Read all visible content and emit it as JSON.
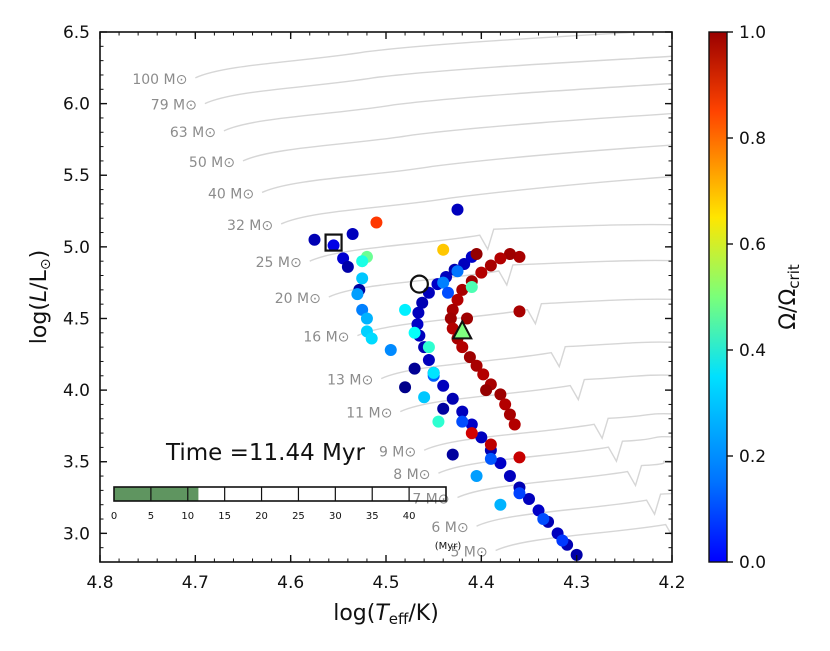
{
  "chart_data": {
    "type": "scatter",
    "title": "",
    "xlabel": "log(T_eff/K)",
    "ylabel": "log(L/L⊙)",
    "xlim": [
      4.8,
      4.2
    ],
    "ylim": [
      2.8,
      6.5
    ],
    "xticks": [
      "4.8",
      "4.7",
      "4.6",
      "4.5",
      "4.4",
      "4.3",
      "4.2"
    ],
    "yticks": [
      "3.0",
      "3.5",
      "4.0",
      "4.5",
      "5.0",
      "5.5",
      "6.0",
      "6.5"
    ],
    "colorbar": {
      "label": "Ω/Ω_crit",
      "range": [
        0.0,
        1.0
      ],
      "ticks": [
        "0.0",
        "0.2",
        "0.4",
        "0.6",
        "0.8",
        "1.0"
      ],
      "colormap": "jet"
    },
    "time_label": "Time =11.44 Myr",
    "current_time_myr": 11.44,
    "timeline": {
      "range": [
        0,
        45
      ],
      "ticks": [
        "0",
        "5",
        "10",
        "15",
        "20",
        "25",
        "30",
        "35",
        "40"
      ],
      "unit": "(Myr)"
    },
    "mass_tracks": [
      {
        "label": "100 M⊙",
        "mass": 100,
        "zams": [
          4.7,
          6.18
        ]
      },
      {
        "label": "79 M⊙",
        "mass": 79,
        "zams": [
          4.69,
          6.0
        ]
      },
      {
        "label": "63 M⊙",
        "mass": 63,
        "zams": [
          4.67,
          5.81
        ]
      },
      {
        "label": "50 M⊙",
        "mass": 50,
        "zams": [
          4.65,
          5.6
        ]
      },
      {
        "label": "40 M⊙",
        "mass": 40,
        "zams": [
          4.63,
          5.38
        ]
      },
      {
        "label": "32 M⊙",
        "mass": 32,
        "zams": [
          4.61,
          5.16
        ]
      },
      {
        "label": "25 M⊙",
        "mass": 25,
        "zams": [
          4.58,
          4.9
        ]
      },
      {
        "label": "20 M⊙",
        "mass": 20,
        "zams": [
          4.56,
          4.65
        ]
      },
      {
        "label": "16 M⊙",
        "mass": 16,
        "zams": [
          4.53,
          4.38
        ]
      },
      {
        "label": "13 M⊙",
        "mass": 13,
        "zams": [
          4.505,
          4.08
        ]
      },
      {
        "label": "11 M⊙",
        "mass": 11,
        "zams": [
          4.485,
          3.85
        ]
      },
      {
        "label": "9 M⊙",
        "mass": 9,
        "zams": [
          4.46,
          3.58
        ]
      },
      {
        "label": "8 M⊙",
        "mass": 8,
        "zams": [
          4.445,
          3.42
        ]
      },
      {
        "label": "7 M⊙",
        "mass": 7,
        "zams": [
          4.425,
          3.25
        ]
      },
      {
        "label": "6 M⊙",
        "mass": 6,
        "zams": [
          4.405,
          3.05
        ]
      },
      {
        "label": "5 M⊙",
        "mass": 5,
        "zams": [
          4.385,
          2.88
        ]
      }
    ],
    "series": [
      {
        "name": "blue main sequence",
        "points": [
          [
            4.3,
            2.85,
            0.04
          ],
          [
            4.31,
            2.92,
            0.05
          ],
          [
            4.32,
            3.0,
            0.06
          ],
          [
            4.33,
            3.08,
            0.05
          ],
          [
            4.34,
            3.16,
            0.07
          ],
          [
            4.35,
            3.24,
            0.06
          ],
          [
            4.36,
            3.32,
            0.05
          ],
          [
            4.37,
            3.4,
            0.06
          ],
          [
            4.38,
            3.49,
            0.07
          ],
          [
            4.39,
            3.58,
            0.05
          ],
          [
            4.4,
            3.67,
            0.06
          ],
          [
            4.41,
            3.76,
            0.07
          ],
          [
            4.42,
            3.85,
            0.06
          ],
          [
            4.43,
            3.94,
            0.05
          ],
          [
            4.44,
            4.03,
            0.06
          ],
          [
            4.45,
            4.12,
            0.07
          ],
          [
            4.455,
            4.21,
            0.06
          ],
          [
            4.46,
            4.3,
            0.05
          ],
          [
            4.465,
            4.38,
            0.06
          ],
          [
            4.467,
            4.46,
            0.07
          ],
          [
            4.466,
            4.54,
            0.06
          ],
          [
            4.462,
            4.61,
            0.05
          ],
          [
            4.455,
            4.68,
            0.06
          ],
          [
            4.446,
            4.74,
            0.07
          ],
          [
            4.437,
            4.79,
            0.06
          ],
          [
            4.428,
            4.84,
            0.05
          ],
          [
            4.418,
            4.88,
            0.06
          ],
          [
            4.41,
            4.93,
            0.07
          ],
          [
            4.315,
            2.95,
            0.18
          ],
          [
            4.335,
            3.1,
            0.2
          ],
          [
            4.36,
            3.28,
            0.19
          ],
          [
            4.39,
            3.52,
            0.21
          ],
          [
            4.42,
            3.78,
            0.2
          ],
          [
            4.45,
            4.1,
            0.22
          ],
          [
            4.44,
            4.75,
            0.25
          ],
          [
            4.425,
            4.83,
            0.24
          ],
          [
            4.47,
            4.15,
            0.02
          ],
          [
            4.44,
            3.87,
            0.03
          ],
          [
            4.48,
            4.02,
            0.01
          ],
          [
            4.43,
            3.55,
            0.03
          ],
          [
            4.405,
            3.4,
            0.28
          ],
          [
            4.38,
            3.2,
            0.3
          ]
        ]
      },
      {
        "name": "red track",
        "points": [
          [
            4.36,
            4.93,
            0.96
          ],
          [
            4.37,
            4.95,
            0.97
          ],
          [
            4.38,
            4.92,
            0.95
          ],
          [
            4.39,
            4.87,
            0.96
          ],
          [
            4.4,
            4.82,
            0.95
          ],
          [
            4.41,
            4.76,
            0.97
          ],
          [
            4.42,
            4.7,
            0.96
          ],
          [
            4.425,
            4.63,
            0.95
          ],
          [
            4.43,
            4.56,
            0.96
          ],
          [
            4.432,
            4.5,
            0.97
          ],
          [
            4.43,
            4.43,
            0.95
          ],
          [
            4.425,
            4.36,
            0.96
          ],
          [
            4.42,
            4.3,
            0.95
          ],
          [
            4.412,
            4.23,
            0.97
          ],
          [
            4.405,
            4.17,
            0.96
          ],
          [
            4.398,
            4.11,
            0.95
          ],
          [
            4.39,
            4.04,
            0.96
          ],
          [
            4.38,
            3.97,
            0.97
          ],
          [
            4.375,
            3.9,
            0.95
          ],
          [
            4.37,
            3.83,
            0.96
          ],
          [
            4.365,
            3.76,
            0.95
          ],
          [
            4.36,
            3.53,
            0.93
          ],
          [
            4.39,
            3.62,
            0.94
          ],
          [
            4.41,
            3.7,
            0.92
          ],
          [
            4.395,
            4.0,
            0.98
          ],
          [
            4.415,
            4.5,
            0.97
          ],
          [
            4.405,
            4.95,
            0.98
          ],
          [
            4.36,
            4.55,
            0.96
          ]
        ]
      },
      {
        "name": "scattered",
        "points": [
          [
            4.575,
            5.05,
            0.05
          ],
          [
            4.555,
            5.01,
            0.1
          ],
          [
            4.545,
            4.92,
            0.08
          ],
          [
            4.54,
            4.86,
            0.04
          ],
          [
            4.535,
            5.09,
            0.06
          ],
          [
            4.528,
            4.7,
            0.03
          ],
          [
            4.51,
            5.17,
            0.82
          ],
          [
            4.44,
            4.98,
            0.68
          ],
          [
            4.425,
            5.26,
            0.06
          ],
          [
            4.52,
            4.93,
            0.48
          ],
          [
            4.525,
            4.78,
            0.32
          ],
          [
            4.53,
            4.67,
            0.28
          ],
          [
            4.525,
            4.56,
            0.25
          ],
          [
            4.52,
            4.5,
            0.3
          ],
          [
            4.52,
            4.41,
            0.33
          ],
          [
            4.515,
            4.36,
            0.34
          ],
          [
            4.495,
            4.28,
            0.26
          ],
          [
            4.47,
            4.4,
            0.38
          ],
          [
            4.455,
            4.3,
            0.42
          ],
          [
            4.45,
            4.12,
            0.35
          ],
          [
            4.46,
            3.95,
            0.32
          ],
          [
            4.445,
            3.78,
            0.42
          ],
          [
            4.41,
            4.72,
            0.45
          ],
          [
            4.435,
            4.68,
            0.2
          ],
          [
            4.48,
            4.56,
            0.36
          ],
          [
            4.525,
            4.9,
            0.4
          ]
        ]
      }
    ],
    "markers": [
      {
        "shape": "square",
        "x": 4.555,
        "y": 5.03
      },
      {
        "shape": "circle",
        "x": 4.465,
        "y": 4.74
      },
      {
        "shape": "triangle",
        "x": 4.42,
        "y": 4.41,
        "value": 0.5
      }
    ]
  }
}
